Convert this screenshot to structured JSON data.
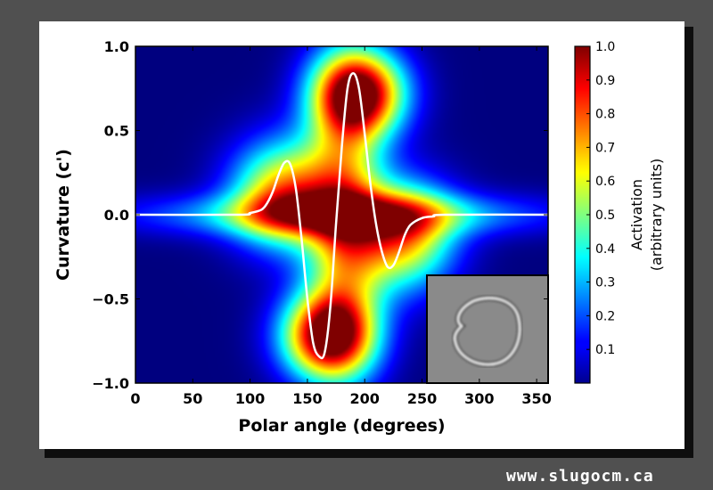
{
  "chart_data": {
    "type": "heatmap",
    "xlabel": "Polar angle (degrees)",
    "ylabel": "Curvature (c')",
    "xlim": [
      0,
      360
    ],
    "ylim": [
      -1.0,
      1.0
    ],
    "x_ticks": [
      0,
      50,
      100,
      150,
      200,
      250,
      300,
      350
    ],
    "x_tick_labels": [
      "0",
      "50",
      "100",
      "150",
      "200",
      "250",
      "300",
      "350"
    ],
    "y_ticks": [
      -1.0,
      -0.5,
      0.0,
      0.5,
      1.0
    ],
    "y_tick_labels": [
      "−1.0",
      "−0.5",
      "0.0",
      "0.5",
      "1.0"
    ],
    "colormap": "jet",
    "colorbar": {
      "label_line1": "Activation",
      "label_line2": "(arbitrary units)",
      "range": [
        0,
        1.0
      ],
      "ticks": [
        0.1,
        0.2,
        0.3,
        0.4,
        0.5,
        0.6,
        0.7,
        0.8,
        0.9,
        1.0
      ],
      "tick_labels": [
        "0.1",
        "0.2",
        "0.3",
        "0.4",
        "0.5",
        "0.6",
        "0.7",
        "0.8",
        "0.9",
        "1.0"
      ]
    },
    "heat_blobs": [
      {
        "x": 195,
        "y": 0.72,
        "sx": 28,
        "sy": 0.18,
        "amp": 1.0
      },
      {
        "x": 168,
        "y": -0.72,
        "sx": 28,
        "sy": 0.18,
        "amp": 1.0
      },
      {
        "x": 130,
        "y": 0.12,
        "sx": 32,
        "sy": 0.22,
        "amp": 0.72
      },
      {
        "x": 232,
        "y": -0.12,
        "sx": 32,
        "sy": 0.22,
        "amp": 0.72
      },
      {
        "x": 182,
        "y": 0.0,
        "sx": 24,
        "sy": 0.55,
        "amp": 0.6
      },
      {
        "x": 180,
        "y": 0.0,
        "sx": 115,
        "sy": 0.09,
        "amp": 0.45
      }
    ],
    "curve": {
      "color": "#ffffff",
      "x": [
        0,
        90,
        100,
        110,
        115,
        120,
        125,
        130,
        135,
        140,
        145,
        150,
        155,
        160,
        165,
        170,
        175,
        180,
        185,
        190,
        195,
        200,
        205,
        210,
        215,
        220,
        225,
        230,
        235,
        240,
        250,
        260,
        270,
        360
      ],
      "y": [
        0.0,
        0.0,
        0.01,
        0.03,
        0.07,
        0.14,
        0.24,
        0.31,
        0.3,
        0.15,
        -0.15,
        -0.5,
        -0.76,
        -0.84,
        -0.82,
        -0.55,
        -0.05,
        0.4,
        0.75,
        0.84,
        0.75,
        0.48,
        0.18,
        -0.06,
        -0.22,
        -0.31,
        -0.3,
        -0.22,
        -0.12,
        -0.06,
        -0.02,
        -0.01,
        0.0,
        0.0
      ]
    },
    "inset": {
      "description_icon": "cell-outline-micrograph",
      "background": "#8a8a8a"
    }
  },
  "watermark": "www.slugocm.ca"
}
